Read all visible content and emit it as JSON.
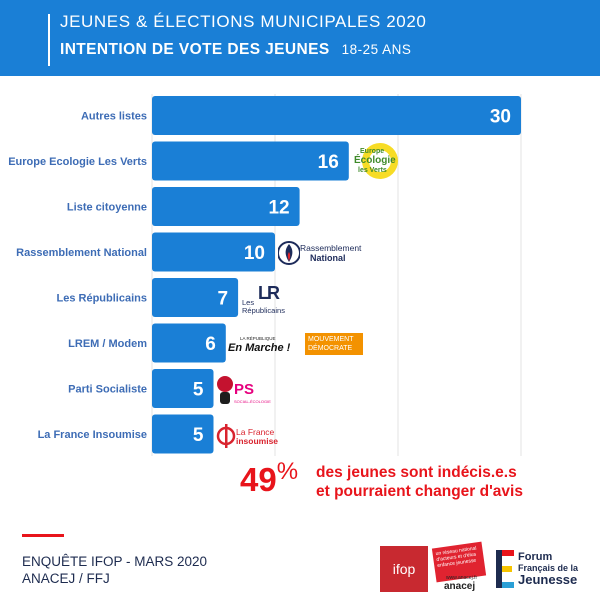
{
  "header": {
    "line1": "JEUNES & ÉLECTIONS MUNICIPALES 2020",
    "line2": "INTENTION DE VOTE DES JEUNES",
    "age": "18-25 ANS"
  },
  "chart_data": {
    "type": "bar",
    "orientation": "horizontal",
    "categories": [
      "Autres listes",
      "Europe Ecologie Les Verts",
      "Liste citoyenne",
      "Rassemblement National",
      "Les Républicains",
      "LREM / Modem",
      "Parti Socialiste",
      "La France Insoumise"
    ],
    "values": [
      30,
      16,
      12,
      10,
      7,
      6,
      5,
      5
    ],
    "xlim": [
      0,
      30
    ],
    "grid": true,
    "bar_color": "#1a7fd6",
    "label_color": "#3d6cb5"
  },
  "logos": {
    "eelv": [
      "Europe",
      "Écologie",
      "les Verts"
    ],
    "rn": [
      "Rassemblement",
      "National"
    ],
    "lr_mark": "LR",
    "lr_text": [
      "Les",
      "Républicains"
    ],
    "lrem_small": "LA RÉPUBLIQUE",
    "lrem": "En Marche !",
    "modem": [
      "MOUVEMENT",
      "DÉMOCRATE"
    ],
    "ps": "PS",
    "ps_sub": "SOCIAL-ÉCOLOGIE",
    "lfi": [
      "La France",
      "insoumise"
    ]
  },
  "callout": {
    "number": "49",
    "percent": "%",
    "line1": "des jeunes sont indécis.e.s",
    "line2": "et pourraient changer d'avis"
  },
  "footer": {
    "line1": "ENQUÊTE IFOP - MARS 2020",
    "line2": "ANACEJ / FFJ"
  },
  "partners": {
    "ifop": "ifop",
    "anacej_box": "un réseau national d'acteurs et d'élus enfance jeunesse",
    "anacej_url": "www.anacej.fr",
    "anacej": "anacej",
    "ffj_lines": [
      "Forum",
      "Français de la",
      "Jeunesse"
    ]
  },
  "colors": {
    "brand_blue": "#1a7fd6",
    "accent_red": "#e8141b"
  }
}
